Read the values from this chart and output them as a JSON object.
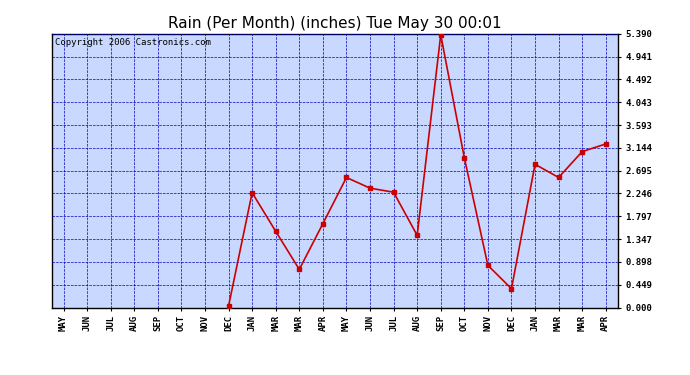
{
  "title": "Rain (Per Month) (inches) Tue May 30 00:01",
  "copyright": "Copyright 2006 Castronics.com",
  "x_labels": [
    "MAY",
    "JUN",
    "JUL",
    "AUG",
    "SEP",
    "OCT",
    "NOV",
    "DEC",
    "JAN",
    "MAR",
    "MAR",
    "APR",
    "MAY",
    "JUN",
    "JUL",
    "AUG",
    "SEP",
    "OCT",
    "NOV",
    "DEC",
    "JAN",
    "MAR",
    "MAR",
    "APR"
  ],
  "y_values": [
    null,
    null,
    null,
    null,
    null,
    null,
    null,
    0.03,
    2.26,
    1.5,
    0.75,
    1.65,
    2.56,
    2.35,
    2.27,
    1.42,
    5.37,
    2.95,
    0.83,
    0.37,
    2.82,
    2.56,
    3.07,
    3.22
  ],
  "y_ticks": [
    0.0,
    0.449,
    0.898,
    1.347,
    1.797,
    2.246,
    2.695,
    3.144,
    3.593,
    4.043,
    4.492,
    4.941,
    5.39
  ],
  "y_min": 0.0,
  "y_max": 5.39,
  "line_color": "#cc0000",
  "marker_color": "#cc0000",
  "bg_color": "#c8d8ff",
  "grid_color": "#0000bb",
  "border_color": "#000000",
  "title_color": "#000000",
  "title_fontsize": 11,
  "copyright_fontsize": 6.5
}
